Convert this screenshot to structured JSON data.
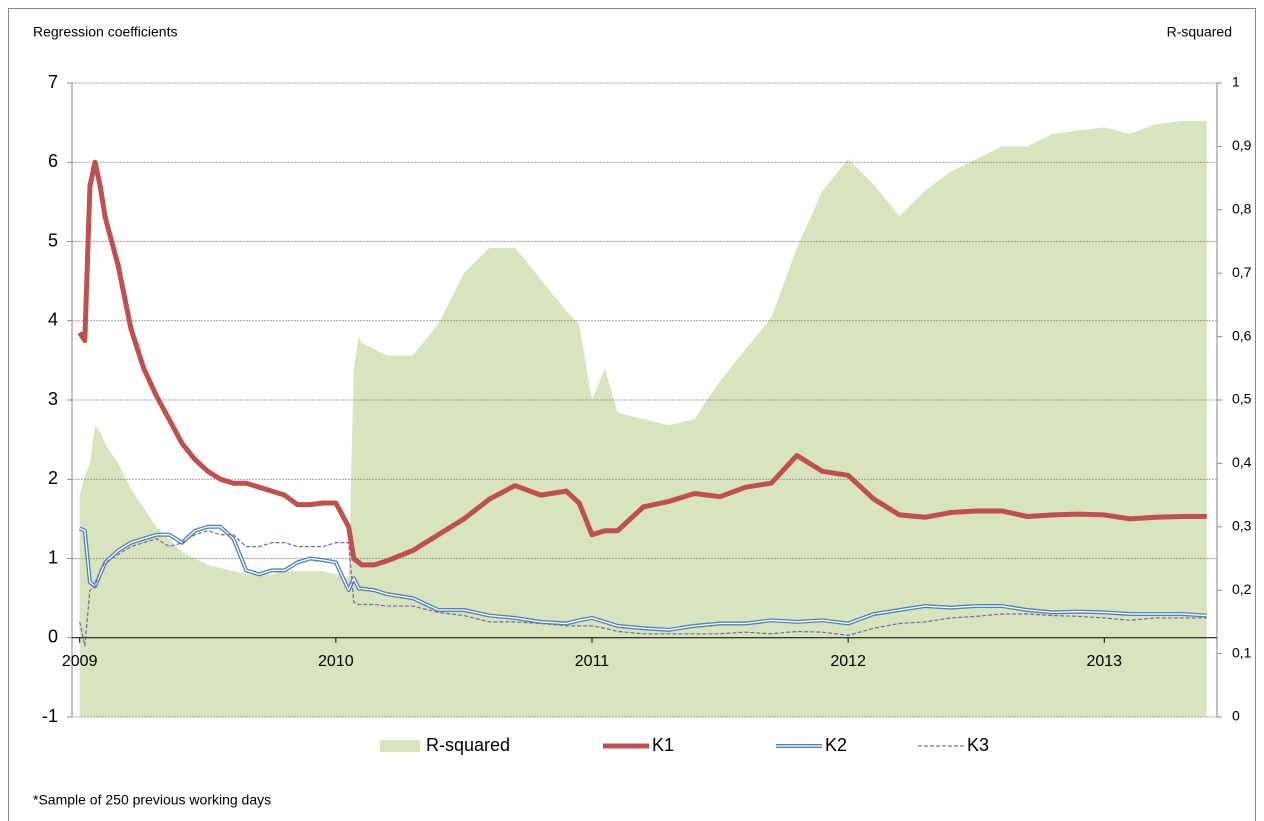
{
  "chart_data": {
    "type": "line",
    "y_label": "Regression coefficients",
    "y2_label": "R-squared",
    "footnote": "*Sample of 250 previous working days",
    "x": [
      2009.0,
      2009.02,
      2009.04,
      2009.06,
      2009.08,
      2009.1,
      2009.15,
      2009.2,
      2009.25,
      2009.3,
      2009.35,
      2009.4,
      2009.45,
      2009.5,
      2009.55,
      2009.6,
      2009.65,
      2009.7,
      2009.75,
      2009.8,
      2009.85,
      2009.9,
      2009.95,
      2010.0,
      2010.05,
      2010.07,
      2010.09,
      2010.1,
      2010.15,
      2010.2,
      2010.3,
      2010.4,
      2010.5,
      2010.6,
      2010.7,
      2010.8,
      2010.9,
      2010.95,
      2011.0,
      2011.05,
      2011.1,
      2011.2,
      2011.3,
      2011.4,
      2011.5,
      2011.6,
      2011.7,
      2011.8,
      2011.9,
      2012.0,
      2012.1,
      2012.2,
      2012.3,
      2012.4,
      2012.5,
      2012.6,
      2012.7,
      2012.8,
      2012.9,
      2013.0,
      2013.1,
      2013.2,
      2013.3,
      2013.4
    ],
    "series": [
      {
        "name": "R-squared",
        "color": "#d7e4bd",
        "style": "area",
        "axis": "y2",
        "values": [
          0.35,
          0.38,
          0.4,
          0.46,
          0.45,
          0.43,
          0.4,
          0.36,
          0.33,
          0.3,
          0.28,
          0.26,
          0.25,
          0.24,
          0.235,
          0.23,
          0.225,
          0.225,
          0.225,
          0.23,
          0.23,
          0.23,
          0.23,
          0.225,
          0.22,
          0.55,
          0.6,
          0.59,
          0.58,
          0.57,
          0.57,
          0.62,
          0.7,
          0.74,
          0.74,
          0.69,
          0.64,
          0.62,
          0.5,
          0.55,
          0.48,
          0.47,
          0.46,
          0.47,
          0.53,
          0.58,
          0.63,
          0.74,
          0.83,
          0.88,
          0.84,
          0.79,
          0.83,
          0.86,
          0.88,
          0.9,
          0.9,
          0.92,
          0.925,
          0.93,
          0.92,
          0.935,
          0.94,
          0.94
        ]
      },
      {
        "name": "K1",
        "color": "#c0504d",
        "style": "solid",
        "width": 5,
        "values": [
          3.85,
          3.75,
          5.7,
          6.0,
          5.7,
          5.3,
          4.7,
          3.9,
          3.4,
          3.05,
          2.75,
          2.45,
          2.25,
          2.1,
          2.0,
          1.95,
          1.95,
          1.9,
          1.85,
          1.8,
          1.68,
          1.68,
          1.7,
          1.7,
          1.4,
          1.0,
          0.95,
          0.92,
          0.92,
          0.97,
          1.1,
          1.3,
          1.5,
          1.75,
          1.92,
          1.8,
          1.85,
          1.7,
          1.3,
          1.35,
          1.35,
          1.65,
          1.72,
          1.82,
          1.78,
          1.9,
          1.95,
          2.3,
          2.1,
          2.05,
          1.75,
          1.55,
          1.52,
          1.58,
          1.6,
          1.6,
          1.53,
          1.55,
          1.56,
          1.55,
          1.5,
          1.52,
          1.53,
          1.53
        ]
      },
      {
        "name": "K2",
        "color": "#4f81bd",
        "style": "double",
        "width": 4,
        "values": [
          1.38,
          1.35,
          0.7,
          0.65,
          0.8,
          0.95,
          1.1,
          1.2,
          1.25,
          1.3,
          1.3,
          1.2,
          1.35,
          1.4,
          1.4,
          1.25,
          0.85,
          0.8,
          0.85,
          0.85,
          0.95,
          1.0,
          0.98,
          0.95,
          0.6,
          0.75,
          0.62,
          0.62,
          0.6,
          0.55,
          0.5,
          0.35,
          0.35,
          0.28,
          0.25,
          0.2,
          0.18,
          0.22,
          0.25,
          0.2,
          0.15,
          0.12,
          0.1,
          0.15,
          0.18,
          0.18,
          0.22,
          0.2,
          0.22,
          0.18,
          0.3,
          0.35,
          0.4,
          0.38,
          0.4,
          0.4,
          0.35,
          0.32,
          0.33,
          0.32,
          0.3,
          0.3,
          0.3,
          0.28
        ]
      },
      {
        "name": "K3",
        "color": "#8064a2",
        "style": "dashed",
        "width": 1.2,
        "values": [
          0.2,
          -0.1,
          0.6,
          0.65,
          0.85,
          0.95,
          1.05,
          1.15,
          1.2,
          1.25,
          1.15,
          1.2,
          1.3,
          1.35,
          1.3,
          1.3,
          1.15,
          1.15,
          1.2,
          1.2,
          1.15,
          1.15,
          1.15,
          1.2,
          1.2,
          0.45,
          0.42,
          0.42,
          0.42,
          0.4,
          0.4,
          0.32,
          0.28,
          0.2,
          0.2,
          0.18,
          0.15,
          0.15,
          0.15,
          0.12,
          0.08,
          0.05,
          0.05,
          0.05,
          0.05,
          0.07,
          0.05,
          0.08,
          0.07,
          0.03,
          0.12,
          0.18,
          0.2,
          0.25,
          0.27,
          0.3,
          0.3,
          0.28,
          0.27,
          0.25,
          0.22,
          0.25,
          0.25,
          0.25
        ]
      }
    ],
    "xlim": [
      2008.97,
      2013.44
    ],
    "xticks": [
      2009,
      2010,
      2011,
      2012,
      2013
    ],
    "ylim": [
      -1,
      7
    ],
    "yticks": [
      -1,
      0,
      1,
      2,
      3,
      4,
      5,
      6,
      7
    ],
    "y2lim": [
      0,
      1
    ],
    "y2ticks": [
      0,
      {
        "value": 0.1,
        "label": "0,1"
      },
      {
        "value": 0.2,
        "label": "0,2"
      },
      {
        "value": 0.3,
        "label": "0,3"
      },
      {
        "value": 0.4,
        "label": "0,4"
      },
      {
        "value": 0.5,
        "label": "0,5"
      },
      {
        "value": 0.6,
        "label": "0,6"
      },
      {
        "value": 0.7,
        "label": "0,7"
      },
      {
        "value": 0.8,
        "label": "0,8"
      },
      {
        "value": 0.9,
        "label": "0,9"
      },
      1
    ],
    "grid": true,
    "legend": "bottom"
  }
}
